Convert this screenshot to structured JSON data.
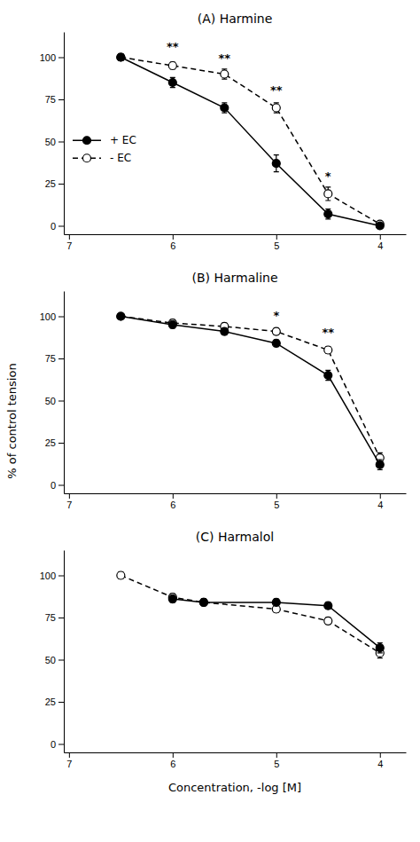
{
  "chart_data": [
    {
      "type": "line",
      "title": "(A) Harmine",
      "xlim": [
        7.05,
        3.75
      ],
      "xticks": [
        7,
        6,
        5,
        4
      ],
      "ylim": [
        -5,
        115
      ],
      "yticks": [
        0,
        25,
        50,
        75,
        100
      ],
      "legend": "left",
      "series": [
        {
          "name": "+ EC",
          "color": "black",
          "marker": "circle",
          "line_style": "solid",
          "x": [
            6.5,
            6.0,
            5.5,
            5.0,
            4.5,
            4.0
          ],
          "values": [
            100,
            85,
            70,
            37,
            7,
            0
          ],
          "errors": [
            2,
            3,
            3,
            5,
            3,
            1
          ]
        },
        {
          "name": "- EC",
          "color": "black",
          "marker": "open_circle",
          "line_style": "dashed",
          "x": [
            6.5,
            6.0,
            5.5,
            5.0,
            4.5,
            4.0
          ],
          "values": [
            100,
            95,
            90,
            70,
            19,
            1
          ],
          "errors": [
            2,
            2,
            3,
            3,
            4,
            1
          ]
        }
      ],
      "annotations": [
        {
          "x": 6.0,
          "y": 104,
          "text": "**"
        },
        {
          "x": 5.5,
          "y": 97,
          "text": "**"
        },
        {
          "x": 5.0,
          "y": 78,
          "text": "**"
        },
        {
          "x": 4.5,
          "y": 27,
          "text": "*"
        }
      ]
    },
    {
      "type": "line",
      "title": "(B) Harmaline",
      "ylabel": "% of control tension",
      "xlim": [
        7.05,
        3.75
      ],
      "xticks": [
        7,
        6,
        5,
        4
      ],
      "ylim": [
        -5,
        115
      ],
      "yticks": [
        0,
        25,
        50,
        75,
        100
      ],
      "series": [
        {
          "color": "black",
          "marker": "circle",
          "line_style": "solid",
          "x": [
            6.5,
            6.0,
            5.5,
            5.0,
            4.5,
            4.0
          ],
          "values": [
            100,
            95,
            91,
            84,
            65,
            12
          ],
          "errors": [
            1,
            2,
            2,
            2,
            3,
            3
          ]
        },
        {
          "color": "black",
          "marker": "open_circle",
          "line_style": "dashed",
          "x": [
            6.5,
            6.0,
            5.5,
            5.0,
            4.5,
            4.0
          ],
          "values": [
            100,
            96,
            94,
            91,
            80,
            16
          ],
          "errors": [
            1,
            2,
            2,
            2,
            2,
            3
          ]
        }
      ],
      "annotations": [
        {
          "x": 5.0,
          "y": 98,
          "text": "*"
        },
        {
          "x": 4.5,
          "y": 88,
          "text": "**"
        }
      ]
    },
    {
      "type": "line",
      "title": "(C) Harmalol",
      "xlabel": "Concentration,  -log [M]",
      "xlim": [
        7.05,
        3.75
      ],
      "xticks": [
        7,
        6,
        5,
        4
      ],
      "ylim": [
        -5,
        115
      ],
      "yticks": [
        0,
        25,
        50,
        75,
        100
      ],
      "series": [
        {
          "color": "black",
          "marker": "circle",
          "line_style": "solid",
          "x": [
            6.0,
            5.7,
            5.0,
            4.5,
            4.0
          ],
          "values": [
            86,
            84,
            84,
            82,
            57
          ],
          "errors": [
            2,
            2,
            2,
            2,
            3
          ]
        },
        {
          "color": "black",
          "marker": "open_circle",
          "line_style": "dashed",
          "x": [
            6.5,
            6.0,
            5.7,
            5.0,
            4.5,
            4.0
          ],
          "values": [
            100,
            87,
            84,
            80,
            73,
            54
          ],
          "errors": [
            2,
            2,
            2,
            2,
            2,
            3
          ]
        }
      ]
    }
  ]
}
